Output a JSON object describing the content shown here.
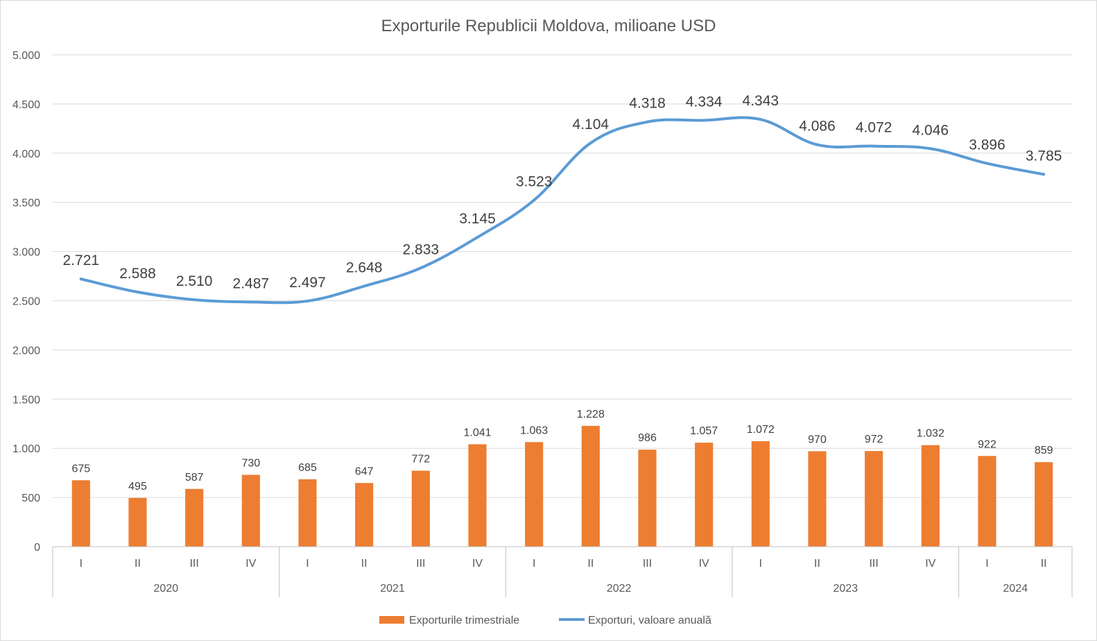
{
  "chart_data": {
    "type": "bar+line",
    "title": "Exporturile Republicii Moldova, milioane USD",
    "categories": [
      "I",
      "II",
      "III",
      "IV",
      "I",
      "II",
      "III",
      "IV",
      "I",
      "II",
      "III",
      "IV",
      "I",
      "II",
      "III",
      "IV",
      "I",
      "II"
    ],
    "groups": [
      {
        "label": "2020",
        "count": 4
      },
      {
        "label": "2021",
        "count": 4
      },
      {
        "label": "2022",
        "count": 4
      },
      {
        "label": "2023",
        "count": 4
      },
      {
        "label": "2024",
        "count": 2
      }
    ],
    "ylim": [
      0,
      5000
    ],
    "yticks": [
      0,
      500,
      1000,
      1500,
      2000,
      2500,
      3000,
      3500,
      4000,
      4500,
      5000
    ],
    "ytick_labels": [
      "0",
      "500",
      "1.000",
      "1.500",
      "2.000",
      "2.500",
      "3.000",
      "3.500",
      "4.000",
      "4.500",
      "5.000"
    ],
    "grid": true,
    "legend_position": "bottom",
    "series": [
      {
        "name": "Exporturile trimestriale",
        "kind": "bar",
        "color": "#ED7D31",
        "values": [
          675,
          495,
          587,
          730,
          685,
          647,
          772,
          1041,
          1063,
          1228,
          986,
          1057,
          1072,
          970,
          972,
          1032,
          922,
          859
        ],
        "labels": [
          "675",
          "495",
          "587",
          "730",
          "685",
          "647",
          "772",
          "1.041",
          "1.063",
          "1.228",
          "986",
          "1.057",
          "1.072",
          "970",
          "972",
          "1.032",
          "922",
          "859"
        ]
      },
      {
        "name": "Exporturi, valoare anuală",
        "kind": "line",
        "color": "#5B9BD5",
        "values": [
          2721,
          2588,
          2510,
          2487,
          2497,
          2648,
          2833,
          3145,
          3523,
          4104,
          4318,
          4334,
          4343,
          4086,
          4072,
          4046,
          3896,
          3785
        ],
        "labels": [
          "2.721",
          "2.588",
          "2.510",
          "2.487",
          "2.497",
          "2.648",
          "2.833",
          "3.145",
          "3.523",
          "4.104",
          "4.318",
          "4.334",
          "4.343",
          "4.086",
          "4.072",
          "4.046",
          "3.896",
          "3.785"
        ]
      }
    ]
  }
}
